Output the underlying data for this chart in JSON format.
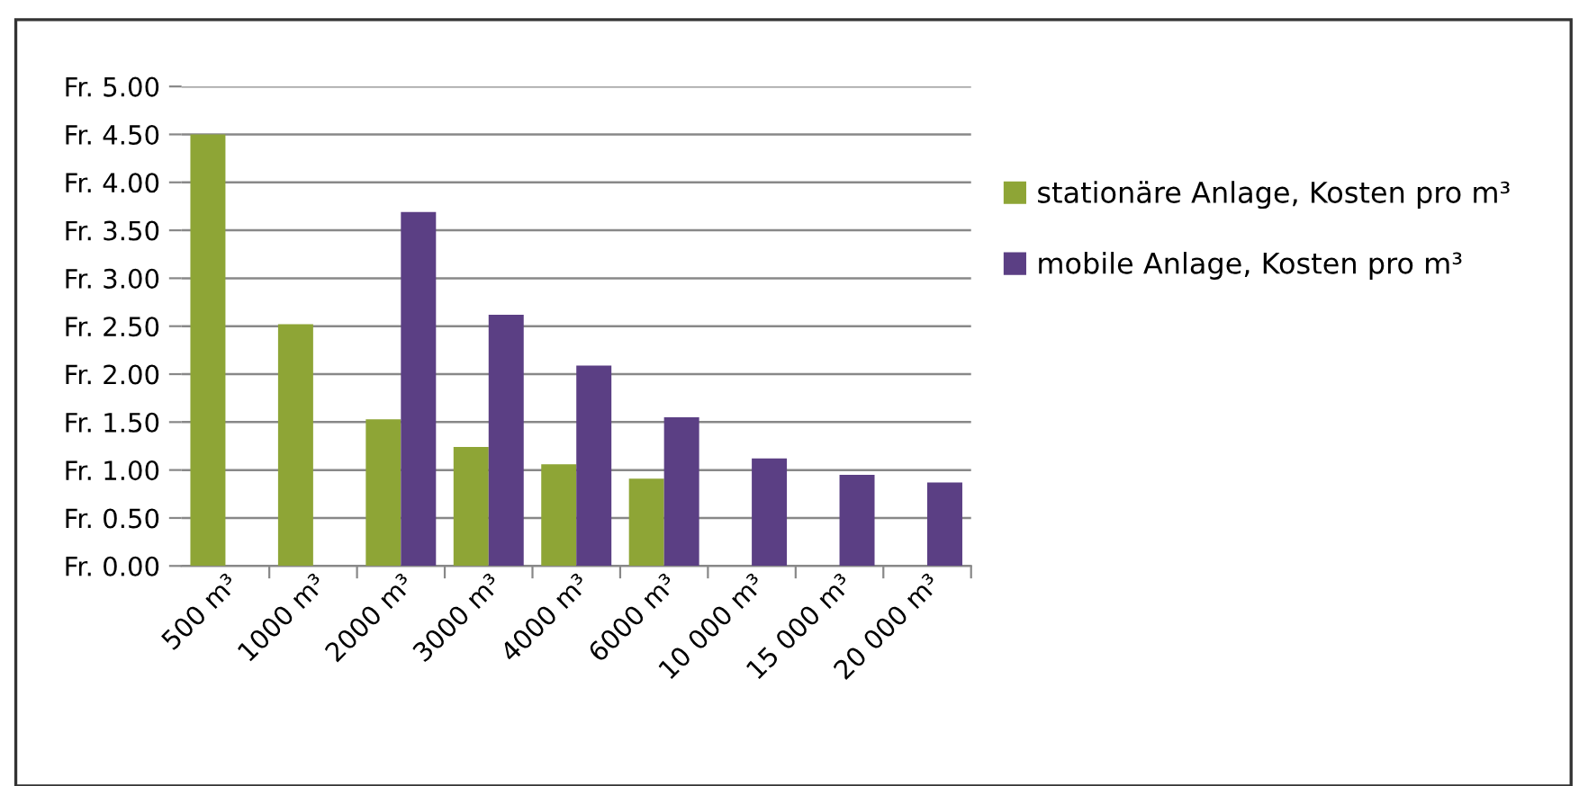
{
  "chart_data": {
    "type": "bar",
    "categories": [
      "500 m³",
      "1000 m³",
      "2000 m³",
      "3000 m³",
      "4000 m³",
      "6000 m³",
      "10 000 m³",
      "15 000 m³",
      "20 000 m³"
    ],
    "series": [
      {
        "name": "stationäre Anlage, Kosten pro m³",
        "color": "#8ea536",
        "values": [
          4.5,
          2.52,
          1.53,
          1.24,
          1.06,
          0.91,
          null,
          null,
          null
        ]
      },
      {
        "name": "mobile Anlage, Kosten pro m³",
        "color": "#5b3f84",
        "values": [
          null,
          null,
          3.69,
          2.62,
          2.09,
          1.55,
          1.12,
          0.95,
          0.87
        ]
      }
    ],
    "ylim": [
      0,
      5
    ],
    "yticks": [
      {
        "value": 0,
        "label": "Fr. 0.00"
      },
      {
        "value": 0.5,
        "label": "Fr. 0.50"
      },
      {
        "value": 1,
        "label": "Fr. 1.00"
      },
      {
        "value": 1.5,
        "label": "Fr. 1.50"
      },
      {
        "value": 2,
        "label": "Fr. 2.00"
      },
      {
        "value": 2.5,
        "label": "Fr. 2.50"
      },
      {
        "value": 3,
        "label": "Fr. 3.00"
      },
      {
        "value": 3.5,
        "label": "Fr. 3.50"
      },
      {
        "value": 4,
        "label": "Fr. 4.00"
      },
      {
        "value": 4.5,
        "label": "Fr. 4.50"
      },
      {
        "value": 5,
        "label": "Fr. 5.00"
      }
    ],
    "grid": "y",
    "legend": "right"
  }
}
